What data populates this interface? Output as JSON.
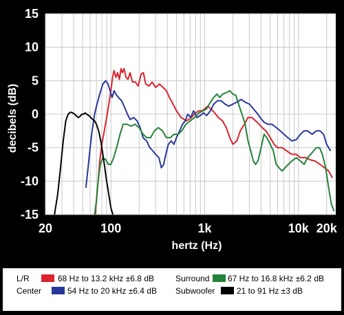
{
  "chart_data": {
    "type": "line",
    "xlabel": "hertz (Hz)",
    "ylabel": "decibels (dB)",
    "x_scale": "log",
    "xlim": [
      20,
      25000
    ],
    "ylim": [
      -15,
      15
    ],
    "x_ticks": [
      {
        "value": 20,
        "label": "20"
      },
      {
        "value": 100,
        "label": "100"
      },
      {
        "value": 1000,
        "label": "1k"
      },
      {
        "value": 10000,
        "label": "10k"
      },
      {
        "value": 20000,
        "label": "20k"
      }
    ],
    "y_ticks": [
      {
        "value": 15,
        "label": "15"
      },
      {
        "value": 10,
        "label": "10"
      },
      {
        "value": 5,
        "label": "5"
      },
      {
        "value": 0,
        "label": "0"
      },
      {
        "value": -5,
        "label": "-5"
      },
      {
        "value": -10,
        "label": "-10"
      },
      {
        "value": -15,
        "label": "-15"
      }
    ],
    "grid": true,
    "series": [
      {
        "name": "L/R",
        "legend_label": "68 Hz to 13.2 kHz ±6.8 dB",
        "color": "#d9232d",
        "points": [
          [
            68,
            -15
          ],
          [
            72,
            -11
          ],
          [
            76,
            -7
          ],
          [
            80,
            -4.5
          ],
          [
            85,
            -2.5
          ],
          [
            90,
            -0.5
          ],
          [
            95,
            1.5
          ],
          [
            100,
            3.5
          ],
          [
            104,
            5.5
          ],
          [
            108,
            6.5
          ],
          [
            113,
            5.5
          ],
          [
            118,
            6.2
          ],
          [
            123,
            5.2
          ],
          [
            128,
            6.8
          ],
          [
            133,
            6.2
          ],
          [
            138,
            6.8
          ],
          [
            145,
            5.5
          ],
          [
            152,
            5.2
          ],
          [
            160,
            6.2
          ],
          [
            170,
            4.8
          ],
          [
            182,
            4.8
          ],
          [
            195,
            4.2
          ],
          [
            210,
            6.0
          ],
          [
            222,
            6.2
          ],
          [
            235,
            4.5
          ],
          [
            255,
            4.2
          ],
          [
            275,
            4.8
          ],
          [
            300,
            4.0
          ],
          [
            330,
            4.5
          ],
          [
            360,
            4.0
          ],
          [
            390,
            3.5
          ],
          [
            420,
            2.5
          ],
          [
            460,
            1.5
          ],
          [
            500,
            0.5
          ],
          [
            560,
            -0.5
          ],
          [
            640,
            -1.0
          ],
          [
            720,
            -0.5
          ],
          [
            800,
            0.2
          ],
          [
            870,
            0.5
          ],
          [
            940,
            0.5
          ],
          [
            1000,
            0.8
          ],
          [
            1080,
            1.2
          ],
          [
            1160,
            0.8
          ],
          [
            1260,
            0.3
          ],
          [
            1400,
            -0.5
          ],
          [
            1550,
            -1.0
          ],
          [
            1700,
            -2.0
          ],
          [
            1850,
            -3.5
          ],
          [
            2000,
            -4.5
          ],
          [
            2200,
            -4.0
          ],
          [
            2400,
            -2.5
          ],
          [
            2650,
            -1.5
          ],
          [
            2900,
            -0.5
          ],
          [
            3200,
            -0.5
          ],
          [
            3500,
            -1.0
          ],
          [
            3800,
            -1.5
          ],
          [
            4100,
            -2.0
          ],
          [
            4500,
            -2.5
          ],
          [
            5000,
            -3.5
          ],
          [
            5500,
            -4.5
          ],
          [
            6000,
            -5.0
          ],
          [
            6700,
            -5.0
          ],
          [
            7500,
            -5.5
          ],
          [
            8500,
            -6.0
          ],
          [
            9500,
            -6.0
          ],
          [
            10500,
            -6.5
          ],
          [
            12000,
            -6.5
          ],
          [
            13200,
            -6.8
          ],
          [
            15000,
            -7.0
          ],
          [
            17000,
            -7.5
          ],
          [
            19000,
            -8.0
          ],
          [
            21000,
            -8.5
          ],
          [
            23000,
            -9.5
          ]
        ]
      },
      {
        "name": "Center",
        "legend_label": "54 Hz to 20 kHz ±6.4 dB",
        "color": "#27379b",
        "points": [
          [
            54,
            -11
          ],
          [
            57,
            -8
          ],
          [
            60,
            -5
          ],
          [
            63,
            -2.5
          ],
          [
            67,
            0
          ],
          [
            71,
            1.5
          ],
          [
            76,
            3
          ],
          [
            82,
            4.5
          ],
          [
            88,
            5
          ],
          [
            93,
            4.5
          ],
          [
            98,
            3.5
          ],
          [
            103,
            2.5
          ],
          [
            108,
            3.5
          ],
          [
            113,
            3
          ],
          [
            120,
            2.5
          ],
          [
            130,
            2
          ],
          [
            140,
            1
          ],
          [
            150,
            0
          ],
          [
            160,
            -0.8
          ],
          [
            175,
            -0.5
          ],
          [
            190,
            -1
          ],
          [
            205,
            -2
          ],
          [
            220,
            -3.5
          ],
          [
            240,
            -4
          ],
          [
            260,
            -5
          ],
          [
            280,
            -5.5
          ],
          [
            300,
            -6
          ],
          [
            325,
            -6.5
          ],
          [
            345,
            -8
          ],
          [
            365,
            -7.5
          ],
          [
            385,
            -6
          ],
          [
            410,
            -4.5
          ],
          [
            440,
            -4
          ],
          [
            470,
            -4.5
          ],
          [
            500,
            -3.5
          ],
          [
            540,
            -2.5
          ],
          [
            580,
            -1.5
          ],
          [
            620,
            -1
          ],
          [
            660,
            0
          ],
          [
            710,
            -0.5
          ],
          [
            760,
            0.5
          ],
          [
            830,
            -0.5
          ],
          [
            900,
            -0.2
          ],
          [
            970,
            0.2
          ],
          [
            1050,
            -0.2
          ],
          [
            1150,
            0.5
          ],
          [
            1250,
            1.5
          ],
          [
            1370,
            2
          ],
          [
            1500,
            2
          ],
          [
            1650,
            1.5
          ],
          [
            1800,
            1.2
          ],
          [
            2000,
            1.5
          ],
          [
            2200,
            1.8
          ],
          [
            2450,
            2.2
          ],
          [
            2700,
            1.8
          ],
          [
            3000,
            1.5
          ],
          [
            3300,
            0.8
          ],
          [
            3600,
            0.2
          ],
          [
            3900,
            -0.5
          ],
          [
            4300,
            -1.2
          ],
          [
            4700,
            -1.5
          ],
          [
            5200,
            -1.5
          ],
          [
            5800,
            -2
          ],
          [
            6400,
            -2.5
          ],
          [
            7000,
            -3
          ],
          [
            7700,
            -3.5
          ],
          [
            8500,
            -4
          ],
          [
            9500,
            -3.8
          ],
          [
            10500,
            -3
          ],
          [
            11500,
            -2.5
          ],
          [
            12500,
            -2.5
          ],
          [
            14000,
            -3
          ],
          [
            15500,
            -2.5
          ],
          [
            17000,
            -2.5
          ],
          [
            18500,
            -3
          ],
          [
            20000,
            -4.5
          ],
          [
            22000,
            -5.5
          ]
        ]
      },
      {
        "name": "Surround",
        "legend_label": "67 Hz to 16.8 kHz ±6.2 dB",
        "color": "#238238",
        "points": [
          [
            67,
            -15
          ],
          [
            70,
            -13
          ],
          [
            73,
            -10
          ],
          [
            77,
            -7.5
          ],
          [
            82,
            -6.5
          ],
          [
            88,
            -6.8
          ],
          [
            94,
            -7.5
          ],
          [
            100,
            -7.5
          ],
          [
            107,
            -6.5
          ],
          [
            115,
            -5
          ],
          [
            125,
            -3
          ],
          [
            135,
            -1.5
          ],
          [
            148,
            -1.5
          ],
          [
            165,
            -1.8
          ],
          [
            180,
            -1.5
          ],
          [
            200,
            -2
          ],
          [
            220,
            -3
          ],
          [
            240,
            -3.5
          ],
          [
            265,
            -3.5
          ],
          [
            290,
            -2.5
          ],
          [
            320,
            -2
          ],
          [
            355,
            -2.5
          ],
          [
            390,
            -3.5
          ],
          [
            430,
            -3.5
          ],
          [
            470,
            -3
          ],
          [
            520,
            -3
          ],
          [
            570,
            -2.5
          ],
          [
            630,
            -1.5
          ],
          [
            700,
            -1
          ],
          [
            780,
            -0.5
          ],
          [
            870,
            0.2
          ],
          [
            960,
            0.5
          ],
          [
            1050,
            0.8
          ],
          [
            1150,
            1.8
          ],
          [
            1250,
            2.5
          ],
          [
            1350,
            3
          ],
          [
            1450,
            2.5
          ],
          [
            1550,
            3
          ],
          [
            1700,
            3.2
          ],
          [
            1850,
            3.5
          ],
          [
            2000,
            3
          ],
          [
            2150,
            2.8
          ],
          [
            2300,
            1.5
          ],
          [
            2500,
            0
          ],
          [
            2700,
            -1.5
          ],
          [
            2900,
            -4
          ],
          [
            3100,
            -5.5
          ],
          [
            3300,
            -7
          ],
          [
            3500,
            -7.5
          ],
          [
            3700,
            -7
          ],
          [
            4000,
            -5
          ],
          [
            4300,
            -3
          ],
          [
            4600,
            -3.5
          ],
          [
            5000,
            -4.5
          ],
          [
            5400,
            -5.5
          ],
          [
            5800,
            -7.5
          ],
          [
            6200,
            -8
          ],
          [
            6700,
            -8.5
          ],
          [
            7200,
            -8
          ],
          [
            7800,
            -7.5
          ],
          [
            8500,
            -7
          ],
          [
            9500,
            -6.5
          ],
          [
            10500,
            -7
          ],
          [
            11500,
            -7.5
          ],
          [
            12500,
            -6.5
          ],
          [
            13500,
            -6
          ],
          [
            14500,
            -5.5
          ],
          [
            15500,
            -5
          ],
          [
            16800,
            -5
          ],
          [
            18000,
            -6
          ],
          [
            19500,
            -8
          ],
          [
            21000,
            -11
          ],
          [
            22500,
            -13.5
          ],
          [
            24000,
            -14.5
          ]
        ]
      },
      {
        "name": "Subwoofer",
        "legend_label": "21 to 91 Hz ±3 dB",
        "color": "#000000",
        "points": [
          [
            25,
            -15
          ],
          [
            27,
            -12
          ],
          [
            29,
            -8
          ],
          [
            31,
            -4
          ],
          [
            33,
            -1
          ],
          [
            35,
            0
          ],
          [
            37,
            0.3
          ],
          [
            39,
            0.2
          ],
          [
            41,
            0
          ],
          [
            43,
            -0.3
          ],
          [
            45,
            -0.5
          ],
          [
            47,
            -0.3
          ],
          [
            49,
            0
          ],
          [
            51,
            0
          ],
          [
            53,
            0.2
          ],
          [
            55,
            0
          ],
          [
            58,
            -0.2
          ],
          [
            61,
            -0.5
          ],
          [
            64,
            -0.8
          ],
          [
            67,
            -1
          ],
          [
            70,
            -1.5
          ],
          [
            74,
            -2.5
          ],
          [
            78,
            -4
          ],
          [
            82,
            -6
          ],
          [
            86,
            -8
          ],
          [
            90,
            -10
          ],
          [
            95,
            -12
          ],
          [
            100,
            -14
          ],
          [
            105,
            -15
          ]
        ]
      }
    ],
    "legend": {
      "placement": "bottom",
      "entries": [
        {
          "series": "L/R",
          "label": "L/R",
          "text": "68 Hz to 13.2 kHz ±6.8 dB"
        },
        {
          "series": "Center",
          "label": "Center",
          "text": "54 Hz to 20 kHz ±6.4 dB"
        },
        {
          "series": "Surround",
          "label": "Surround",
          "text": "67 Hz to 16.8 kHz ±6.2 dB"
        },
        {
          "series": "Subwoofer",
          "label": "Subwoofer",
          "text": "21 to 91 Hz ±3 dB"
        }
      ]
    }
  }
}
